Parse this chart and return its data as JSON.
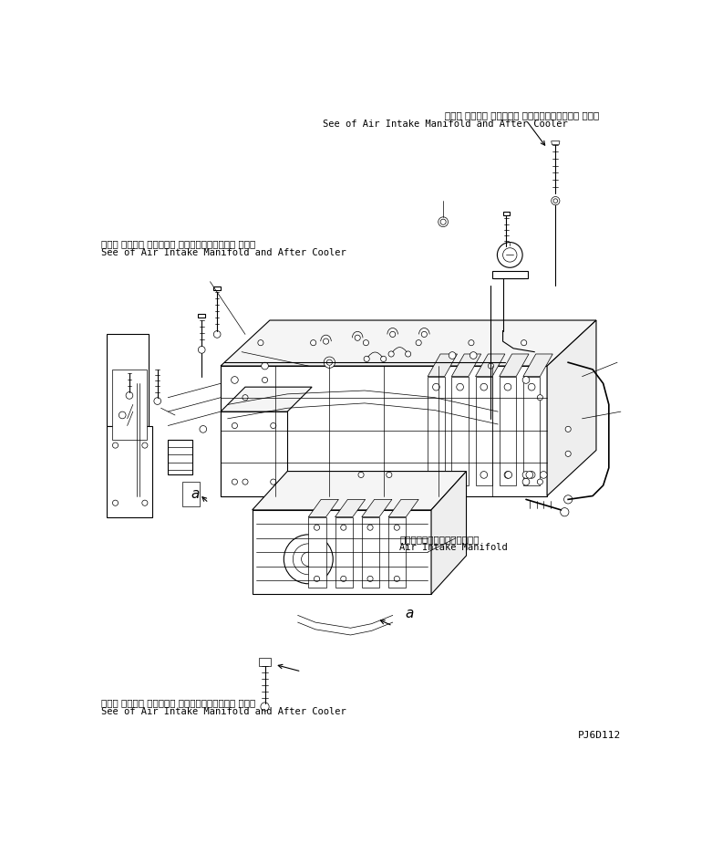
{
  "bg_color": "#ffffff",
  "line_color": "#000000",
  "fig_width": 7.81,
  "fig_height": 9.36,
  "dpi": 100,
  "top_label_jp": "エアー インテー クマニホー ルドおよびアフタクー ラ参照",
  "top_label_en": "See of Air Intake Manifold and After Cooler",
  "left_label_jp": "エアー インテー クマニホー ルドおよびアフタクー ラ参照",
  "left_label_en": "See of Air Intake Manifold and After Cooler",
  "mid_label_jp": "エアーインテークマニホールド",
  "mid_label_en": "Air Intake Manifold",
  "bot_label_jp": "エアー インテー クマニホー ルドおよびアフタクー ラ参照",
  "bot_label_en": "See of Air Intake Manifold and After Cooler",
  "part_id": "PJ6D112",
  "fontsize_label": 7.5,
  "fontsize_a": 11
}
